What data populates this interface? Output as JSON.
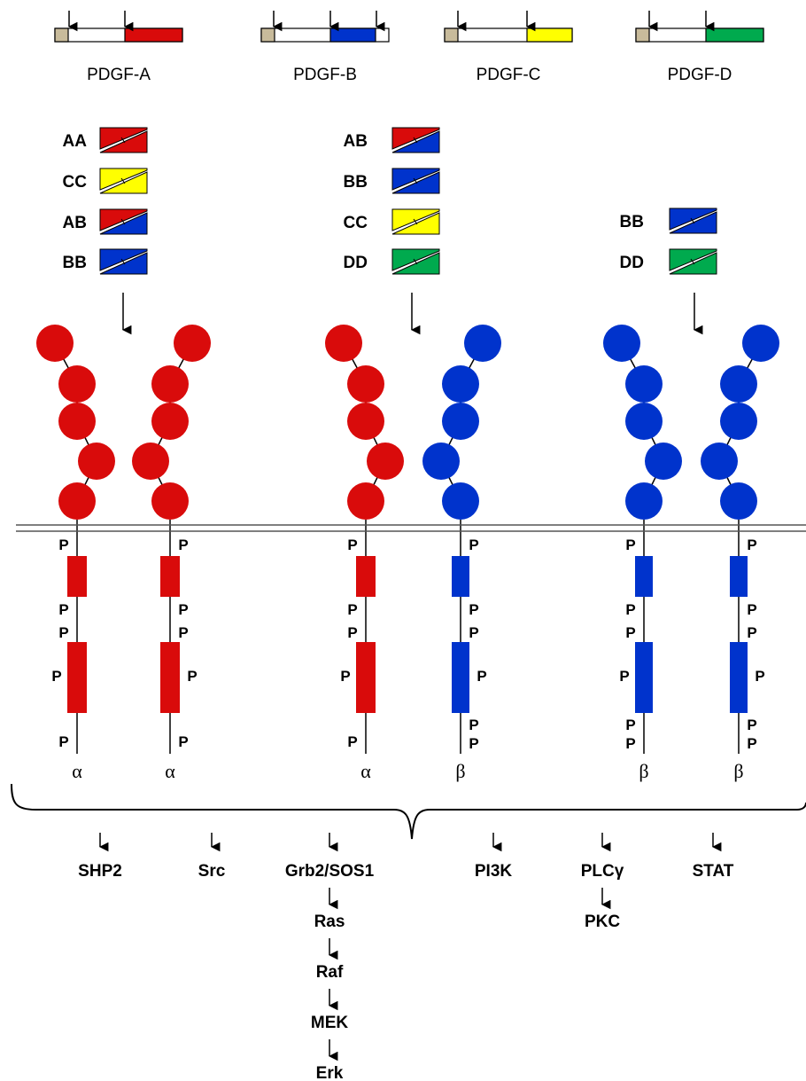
{
  "colors": {
    "A": "#d90b0b",
    "B": "#0033cc",
    "C": "#ffff00",
    "D": "#00aa4e",
    "signal": "#c8bb9b",
    "alpha": "#d90b0b",
    "beta": "#0033cc"
  },
  "genes": [
    {
      "label": "PDGF-A",
      "color_key": "A",
      "arrows": 2
    },
    {
      "label": "PDGF-B",
      "color_key": "B",
      "arrows": 3
    },
    {
      "label": "PDGF-C",
      "color_key": "C",
      "arrows": 2
    },
    {
      "label": "PDGF-D",
      "color_key": "D",
      "arrows": 2
    }
  ],
  "receptor_groups": [
    {
      "ligands": [
        {
          "label": "AA",
          "top": "A",
          "bottom": "A"
        },
        {
          "label": "CC",
          "top": "C",
          "bottom": "C"
        },
        {
          "label": "AB",
          "top": "A",
          "bottom": "B"
        },
        {
          "label": "BB",
          "top": "B",
          "bottom": "B"
        }
      ],
      "receptors": [
        {
          "type": "alpha",
          "symbol": "α"
        },
        {
          "type": "alpha",
          "symbol": "α"
        }
      ]
    },
    {
      "ligands": [
        {
          "label": "AB",
          "top": "A",
          "bottom": "B"
        },
        {
          "label": "BB",
          "top": "B",
          "bottom": "B"
        },
        {
          "label": "CC",
          "top": "C",
          "bottom": "C"
        },
        {
          "label": "DD",
          "top": "D",
          "bottom": "D"
        }
      ],
      "receptors": [
        {
          "type": "alpha",
          "symbol": "α"
        },
        {
          "type": "beta",
          "symbol": "β"
        }
      ]
    },
    {
      "ligands": [
        {
          "label": "BB",
          "top": "B",
          "bottom": "B"
        },
        {
          "label": "DD",
          "top": "D",
          "bottom": "D"
        }
      ],
      "receptors": [
        {
          "type": "beta",
          "symbol": "β"
        },
        {
          "type": "beta",
          "symbol": "β"
        }
      ]
    }
  ],
  "phospho_label": "P",
  "pathways": [
    {
      "chain": [
        "SHP2"
      ]
    },
    {
      "chain": [
        "Src"
      ]
    },
    {
      "chain": [
        "Grb2/SOS1",
        "Ras",
        "Raf",
        "MEK",
        "Erk"
      ]
    },
    {
      "chain": [
        "PI3K"
      ]
    },
    {
      "chain": [
        "PLCγ",
        "PKC"
      ]
    },
    {
      "chain": [
        "STAT"
      ]
    }
  ]
}
